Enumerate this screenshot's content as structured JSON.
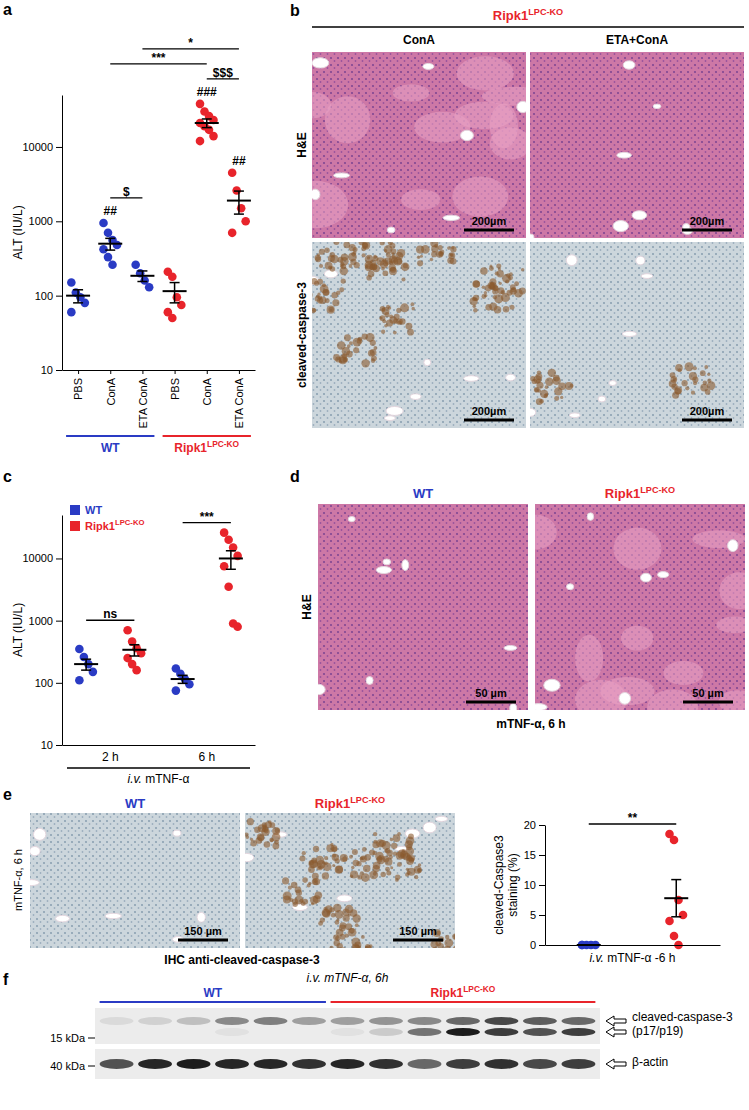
{
  "chart_data": [
    {
      "panel": "a",
      "type": "dot",
      "y_label": "ALT (IU/L)",
      "log": "y",
      "ylim": [
        10,
        50000
      ],
      "yticks": [
        10,
        100,
        1000,
        10000
      ],
      "series": [
        {
          "name": "WT",
          "color": "#2a3bc4",
          "categories": [
            "PBS",
            "ConA",
            "ETA ConA"
          ],
          "values": [
            [
              150,
              110,
              95,
              80,
              60
            ],
            [
              950,
              700,
              560,
              480,
              420,
              330,
              260
            ],
            [
              260,
              200,
              160,
              130
            ]
          ],
          "mean": [
            100,
            500,
            185
          ],
          "sem": [
            20,
            90,
            30
          ]
        },
        {
          "name": [
            {
              "text": "Ripk1",
              "style": "plain"
            },
            {
              "text": "LPC-KO",
              "style": "sup"
            }
          ],
          "color": "#e8242b",
          "categories": [
            "PBS",
            "ConA",
            "ETA ConA"
          ],
          "values": [
            [
              210,
              180,
              95,
              75,
              60,
              50
            ],
            [
              38000,
              30000,
              26000,
              23000,
              21000,
              19000,
              17000,
              14000,
              12000
            ],
            [
              4500,
              2600,
              1500,
              1000,
              700
            ]
          ],
          "mean": [
            115,
            21000,
            1900
          ],
          "sem": [
            35,
            2800,
            650
          ]
        }
      ],
      "marks": [
        {
          "text": "##",
          "at": 1
        },
        {
          "text": "###",
          "at": 4
        },
        {
          "text": "##",
          "at": 5
        }
      ],
      "brackets": [
        {
          "text": "$",
          "from": 1,
          "to": 2
        },
        {
          "text": "$$$",
          "from": 4,
          "to": 5
        },
        {
          "text": "***",
          "from": 1,
          "to": 4
        },
        {
          "text": "*",
          "from": 2,
          "to": 5
        }
      ]
    },
    {
      "panel": "c",
      "type": "dot",
      "y_label": "ALT (IU/L)",
      "log": "y",
      "ylim": [
        10,
        50000
      ],
      "yticks": [
        10,
        100,
        1000,
        10000
      ],
      "categories": [
        "2 h",
        "6 h"
      ],
      "x_label": [
        {
          "text": "i.v.",
          "style": "italic"
        },
        {
          "text": " mTNF-α",
          "style": "plain"
        }
      ],
      "legend": "top-left",
      "series": [
        {
          "name": "WT",
          "color": "#2a3bc4",
          "values": [
            [
              350,
              260,
              200,
              150,
              110
            ],
            [
              170,
              140,
              115,
              95,
              75
            ]
          ],
          "mean": [
            200,
            115
          ],
          "sem": [
            40,
            17
          ]
        },
        {
          "name": [
            {
              "text": "Ripk1",
              "style": "plain"
            },
            {
              "text": "LPC-KO",
              "style": "sup"
            }
          ],
          "color": "#e8242b",
          "values": [
            [
              700,
              460,
              360,
              300,
              250,
              200,
              160
            ],
            [
              26000,
              20000,
              15000,
              11000,
              7500,
              3500,
              900,
              800
            ]
          ],
          "mean": [
            340,
            10000
          ],
          "sem": [
            70,
            3300
          ]
        }
      ],
      "brackets": [
        {
          "text": "ns",
          "from": 0,
          "to": 1
        },
        {
          "text": "***",
          "from": 2,
          "to": 3
        }
      ]
    },
    {
      "type": "dot",
      "y_label": [
        "cleaved-Caspase3",
        "staining (%)"
      ],
      "ylim": [
        0,
        20
      ],
      "yticks": [
        0,
        5,
        10,
        15,
        20
      ],
      "x_label": [
        {
          "text": "i.v.",
          "style": "italic"
        },
        {
          "text": " mTNF-α -6 h",
          "style": "plain"
        }
      ],
      "series": [
        {
          "color": "#2a3bc4",
          "values": [
            0,
            0,
            0,
            0,
            0
          ],
          "mean": 0,
          "sem": 0
        },
        {
          "color": "#e8242b",
          "values": [
            18.5,
            17.5,
            7.5,
            5,
            4,
            1.5,
            0
          ],
          "mean": 7.8,
          "sem": 3.1
        }
      ],
      "brackets": [
        {
          "text": "**",
          "from": 0,
          "to": 1
        }
      ]
    }
  ],
  "figures": {
    "b": {
      "panel": "b",
      "title": [
        {
          "text": "Ripk1",
          "style": "plain"
        },
        {
          "text": "LPC-KO",
          "style": "sup"
        }
      ],
      "color": "#e8242b",
      "columns": [
        "ConA",
        "ETA+ConA"
      ],
      "rows": [
        "H&E",
        "cleaved-caspase-3"
      ],
      "scale_bar": "200µm"
    },
    "d": {
      "panel": "d",
      "columns": [
        "WT",
        [
          {
            "text": "Ripk1",
            "style": "plain"
          },
          {
            "text": "LPC-KO",
            "style": "sup"
          }
        ]
      ],
      "colors": [
        "#2a3bc4",
        "#e8242b"
      ],
      "row": "H&E",
      "scale_bar": "50 µm",
      "caption": "mTNF-α, 6 h"
    },
    "e": {
      "panel": "e",
      "columns": [
        "WT",
        [
          {
            "text": "Ripk1",
            "style": "plain"
          },
          {
            "text": "LPC-KO",
            "style": "sup"
          }
        ]
      ],
      "colors": [
        "#2a3bc4",
        "#e8242b"
      ],
      "side_label": "mTNF-α, 6 h",
      "scale_bar": "150 µm",
      "caption": "IHC anti-cleaved-caspase-3"
    },
    "f": {
      "panel": "f",
      "title": [
        {
          "text": "i.v. mTNF-α, 6h",
          "style": "italic"
        }
      ],
      "groups": [
        {
          "label": "WT",
          "lanes": 6,
          "color": "#2a3bc4"
        },
        {
          "label": [
            {
              "text": "Ripk1",
              "style": "plain"
            },
            {
              "text": "LPC-KO",
              "style": "sup"
            }
          ],
          "lanes": 7,
          "color": "#e8242b"
        }
      ],
      "rows": [
        {
          "label": [
            "cleaved-caspase-3",
            "(p17/p19)"
          ],
          "marker": "15 kDa"
        },
        {
          "label": [
            "β-actin"
          ],
          "marker": "40 kDa"
        }
      ],
      "bands": {
        "upper": [
          0.08,
          0.12,
          0.2,
          0.45,
          0.5,
          0.35,
          0.35,
          0.4,
          0.45,
          0.6,
          0.75,
          0.65,
          0.6
        ],
        "lower": [
          0,
          0,
          0,
          0.05,
          0,
          0,
          0.05,
          0.15,
          0.55,
          0.95,
          0.8,
          0.7,
          0.8
        ],
        "actin": [
          0.7,
          0.9,
          0.95,
          0.9,
          0.9,
          0.85,
          0.9,
          0.85,
          0.6,
          0.8,
          0.85,
          0.75,
          0.8
        ]
      }
    }
  }
}
